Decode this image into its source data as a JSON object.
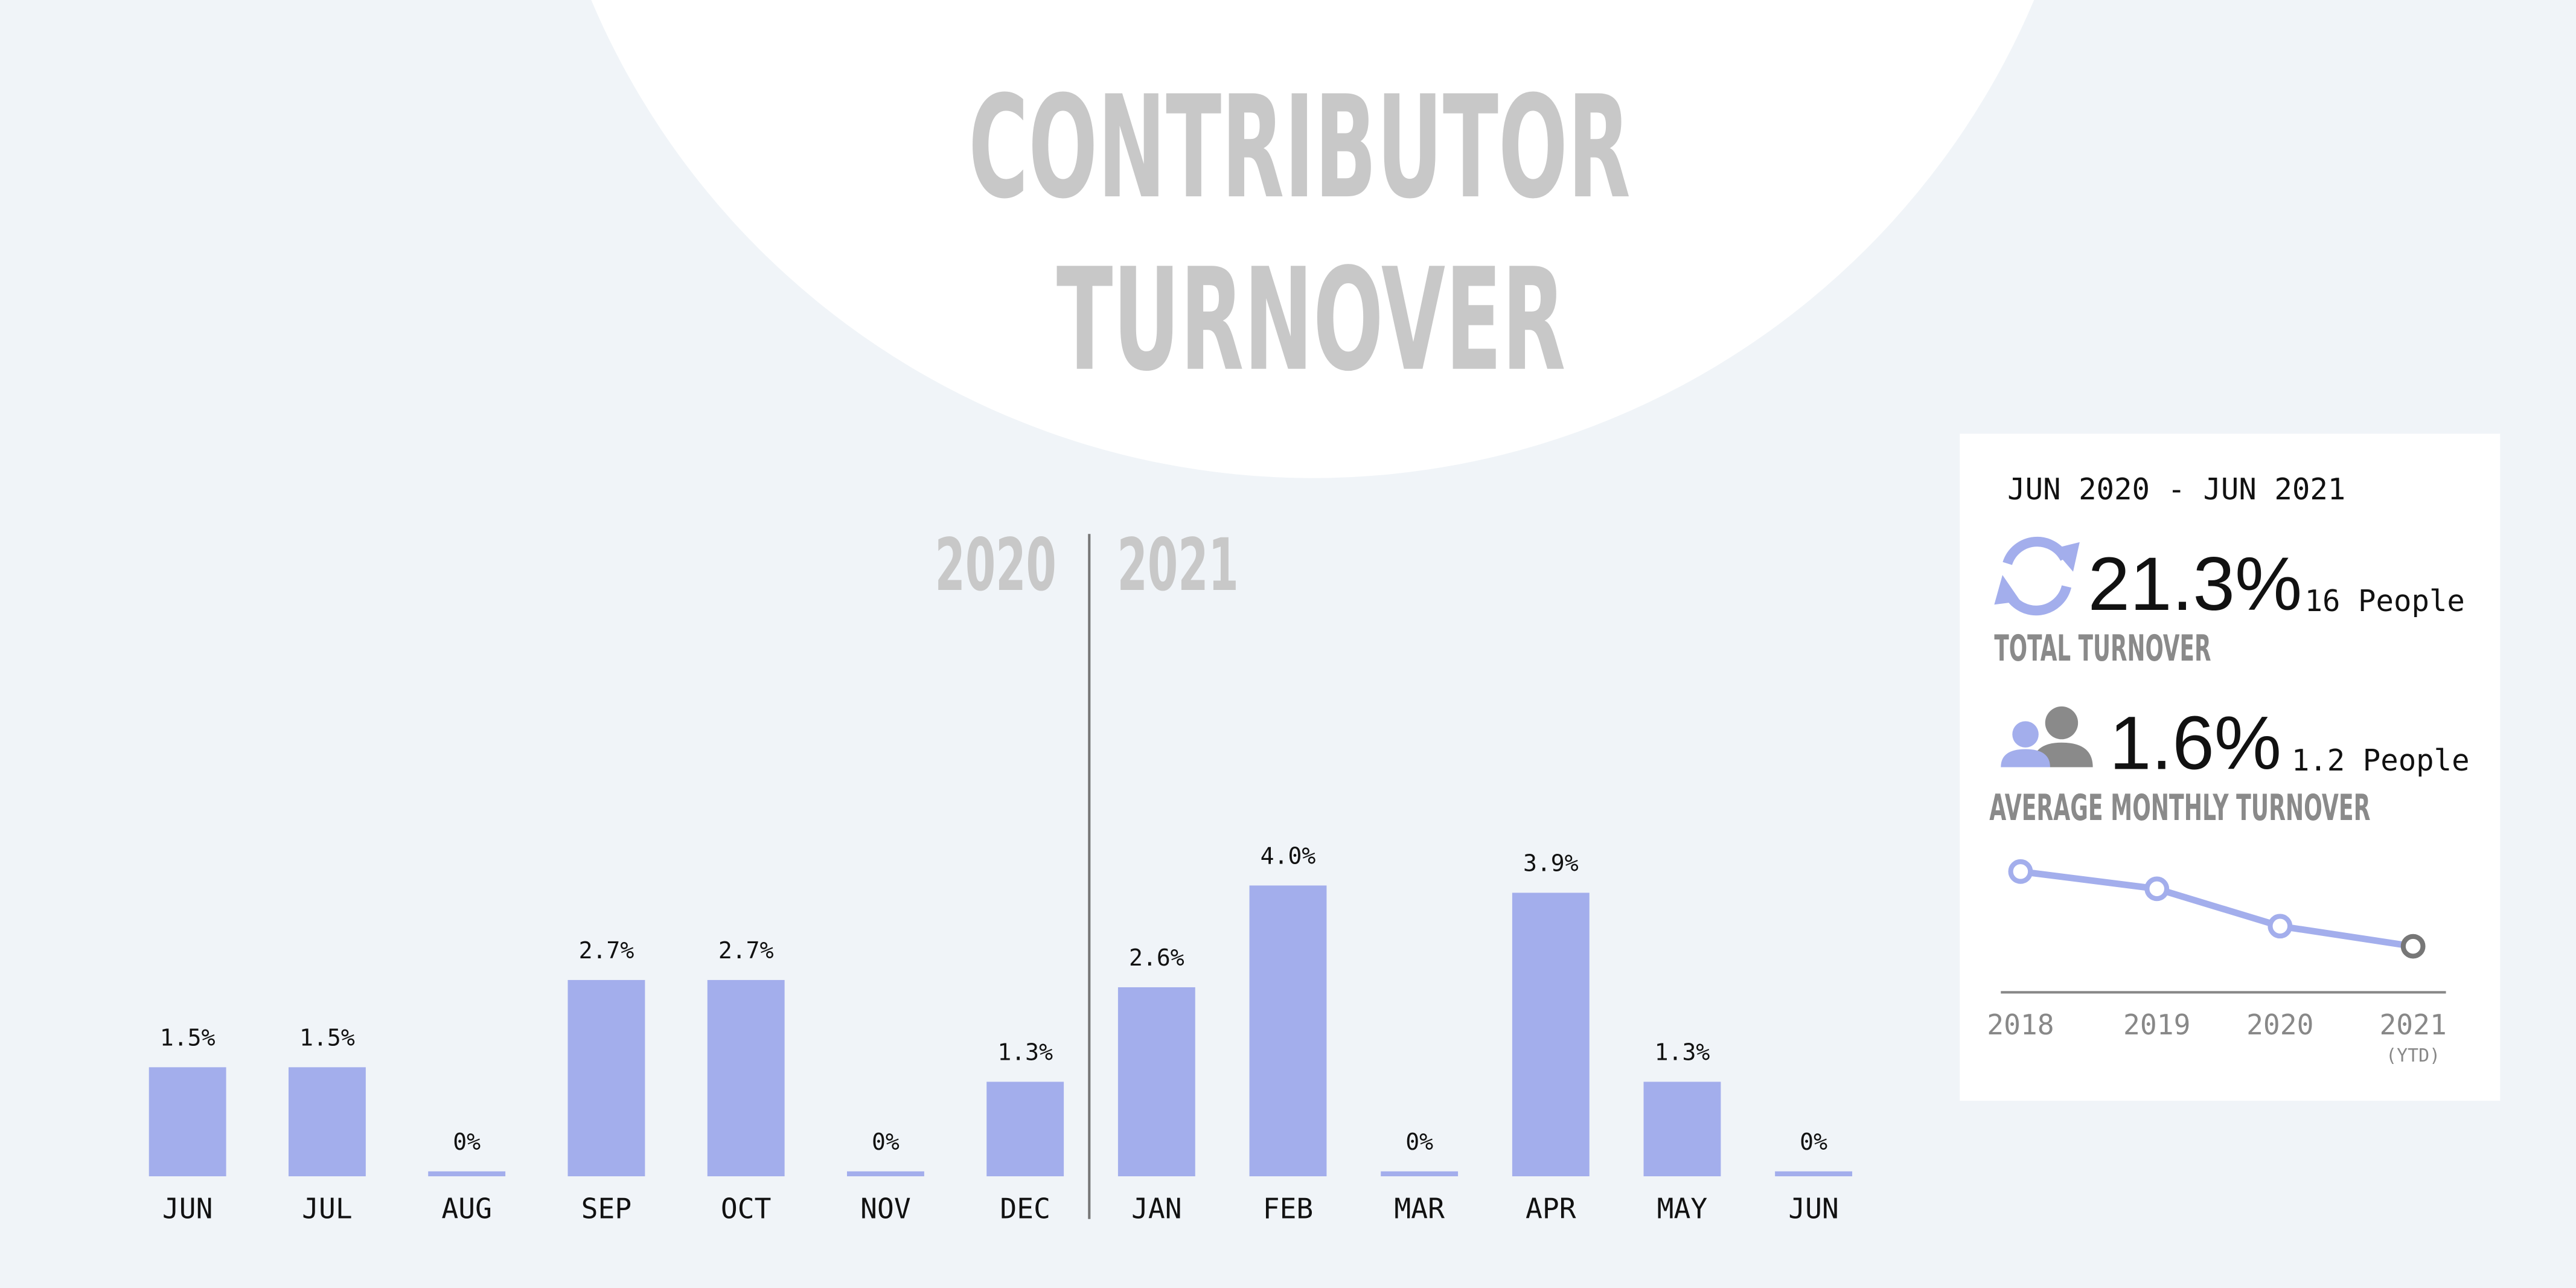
{
  "title": [
    "CONTRIBUTOR",
    "TURNOVER"
  ],
  "chart_data": [
    {
      "type": "bar",
      "annotations": [
        "2020",
        "2021"
      ],
      "categories": [
        "JUN",
        "JUL",
        "AUG",
        "SEP",
        "OCT",
        "NOV",
        "DEC",
        "JAN",
        "FEB",
        "MAR",
        "APR",
        "MAY",
        "JUN"
      ],
      "values": [
        1.5,
        1.5,
        0,
        2.7,
        2.7,
        0,
        1.3,
        2.6,
        4.0,
        0,
        3.9,
        1.3,
        0
      ],
      "value_labels": [
        "1.5%",
        "1.5%",
        "0%",
        "2.7%",
        "2.7%",
        "0%",
        "1.3%",
        "2.6%",
        "4.0%",
        "0%",
        "3.9%",
        "1.3%",
        "0%"
      ],
      "color": "#a3aeec"
    },
    {
      "type": "line",
      "categories": [
        "2018",
        "2019",
        "2020",
        "2021"
      ],
      "category_notes": [
        null,
        null,
        null,
        "(YTD)"
      ],
      "series": [
        {
          "color": "#a3aeec",
          "values": [
            4.2,
            3.6,
            2.3,
            1.6
          ]
        }
      ],
      "last_point_color": "#777777"
    }
  ],
  "card": {
    "period": "JUN 2020 - JUN 2021",
    "total": "21.3%",
    "total_people": "16 People",
    "total_label": "TOTAL TURNOVER",
    "average": "1.6%",
    "average_people": "1.2 People",
    "average_label": "AVERAGE MONTHLY TURNOVER"
  }
}
